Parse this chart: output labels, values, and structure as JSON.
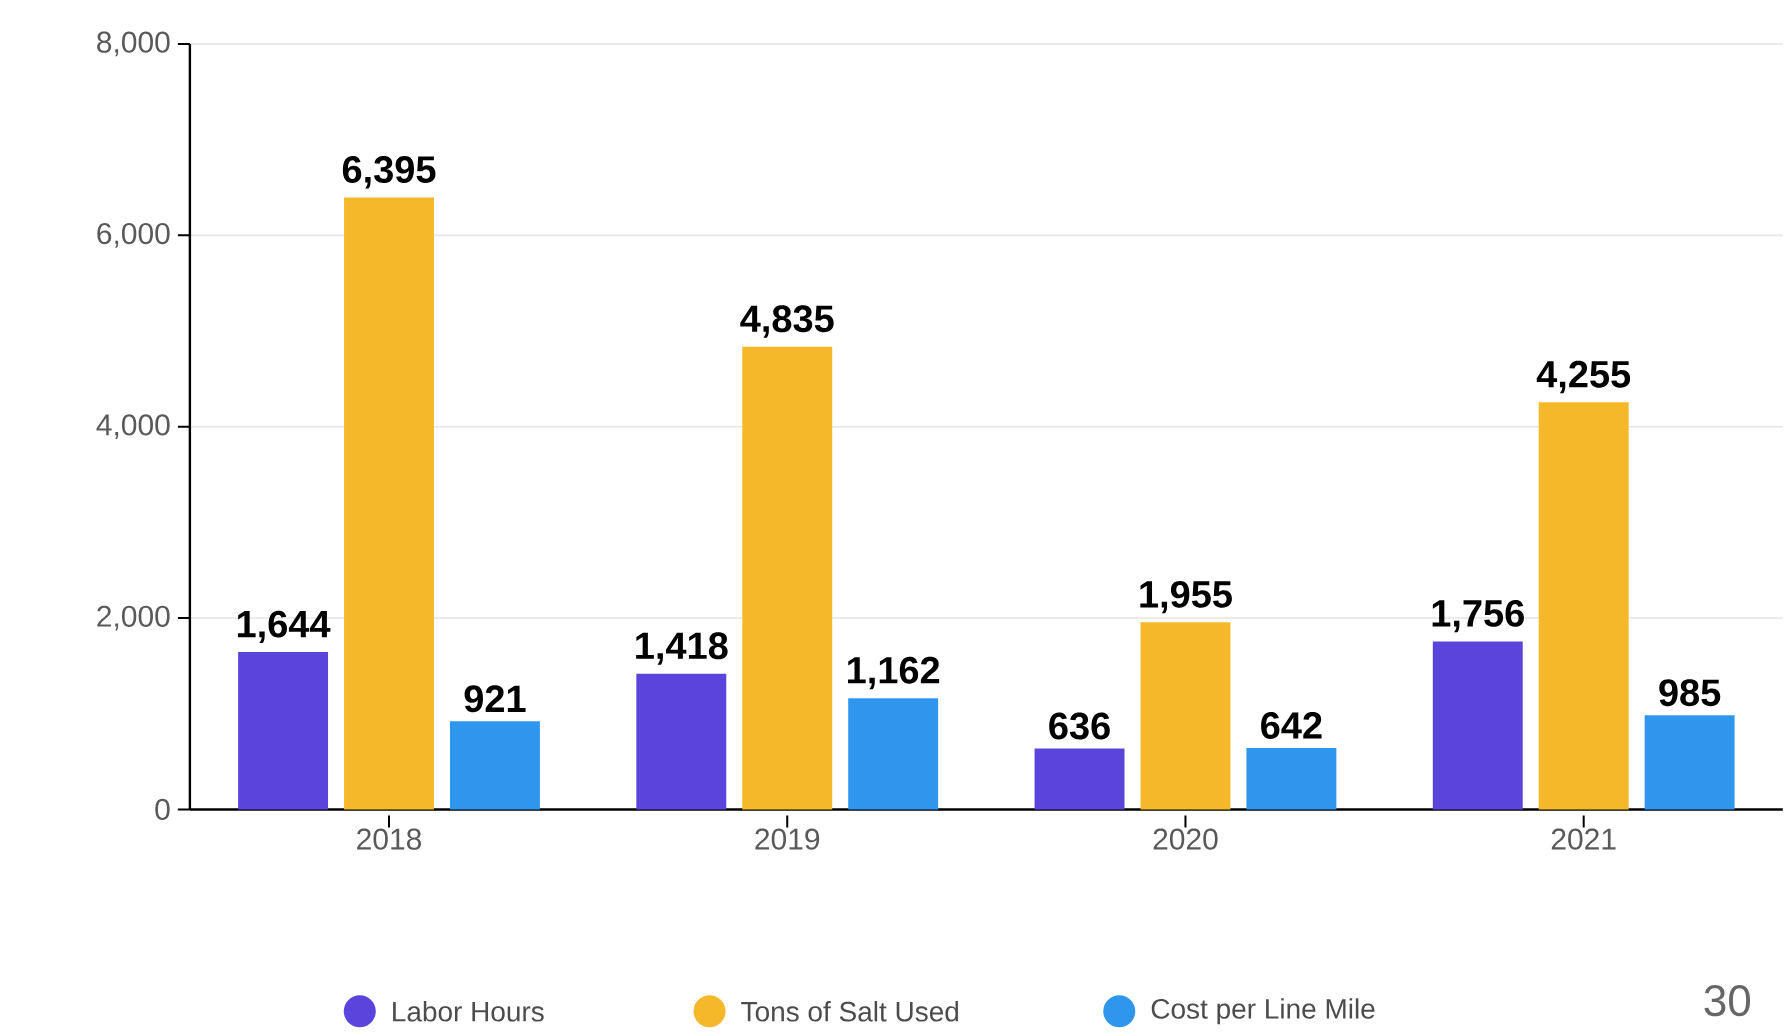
{
  "chart_data": {
    "type": "bar",
    "categories": [
      "2018",
      "2019",
      "2020",
      "2021"
    ],
    "series": [
      {
        "name": "Labor Hours",
        "color": "#5a44dc",
        "values": [
          1644,
          1418,
          636,
          1756
        ],
        "value_labels": [
          "1,644",
          "1,418",
          "636",
          "1,756"
        ]
      },
      {
        "name": "Tons of Salt Used",
        "color": "#f5b82a",
        "values": [
          6395,
          4835,
          1955,
          4255
        ],
        "value_labels": [
          "6,395",
          "4,835",
          "1,955",
          "4,255"
        ]
      },
      {
        "name": "Cost per Line Mile",
        "color": "#2f96ee",
        "values": [
          921,
          1162,
          642,
          985
        ],
        "value_labels": [
          "921",
          "1,162",
          "642",
          "985"
        ]
      }
    ],
    "ylim": [
      0,
      8000
    ],
    "yticks": [
      0,
      {
        "value": 2000,
        "label": "2,000"
      },
      {
        "value": 4000,
        "label": "4,000"
      },
      {
        "value": 6000,
        "label": "6,000"
      },
      {
        "value": 8000,
        "label": "8,000"
      }
    ],
    "grid": "y",
    "legend": "bottom",
    "annotations": [
      "30"
    ]
  }
}
